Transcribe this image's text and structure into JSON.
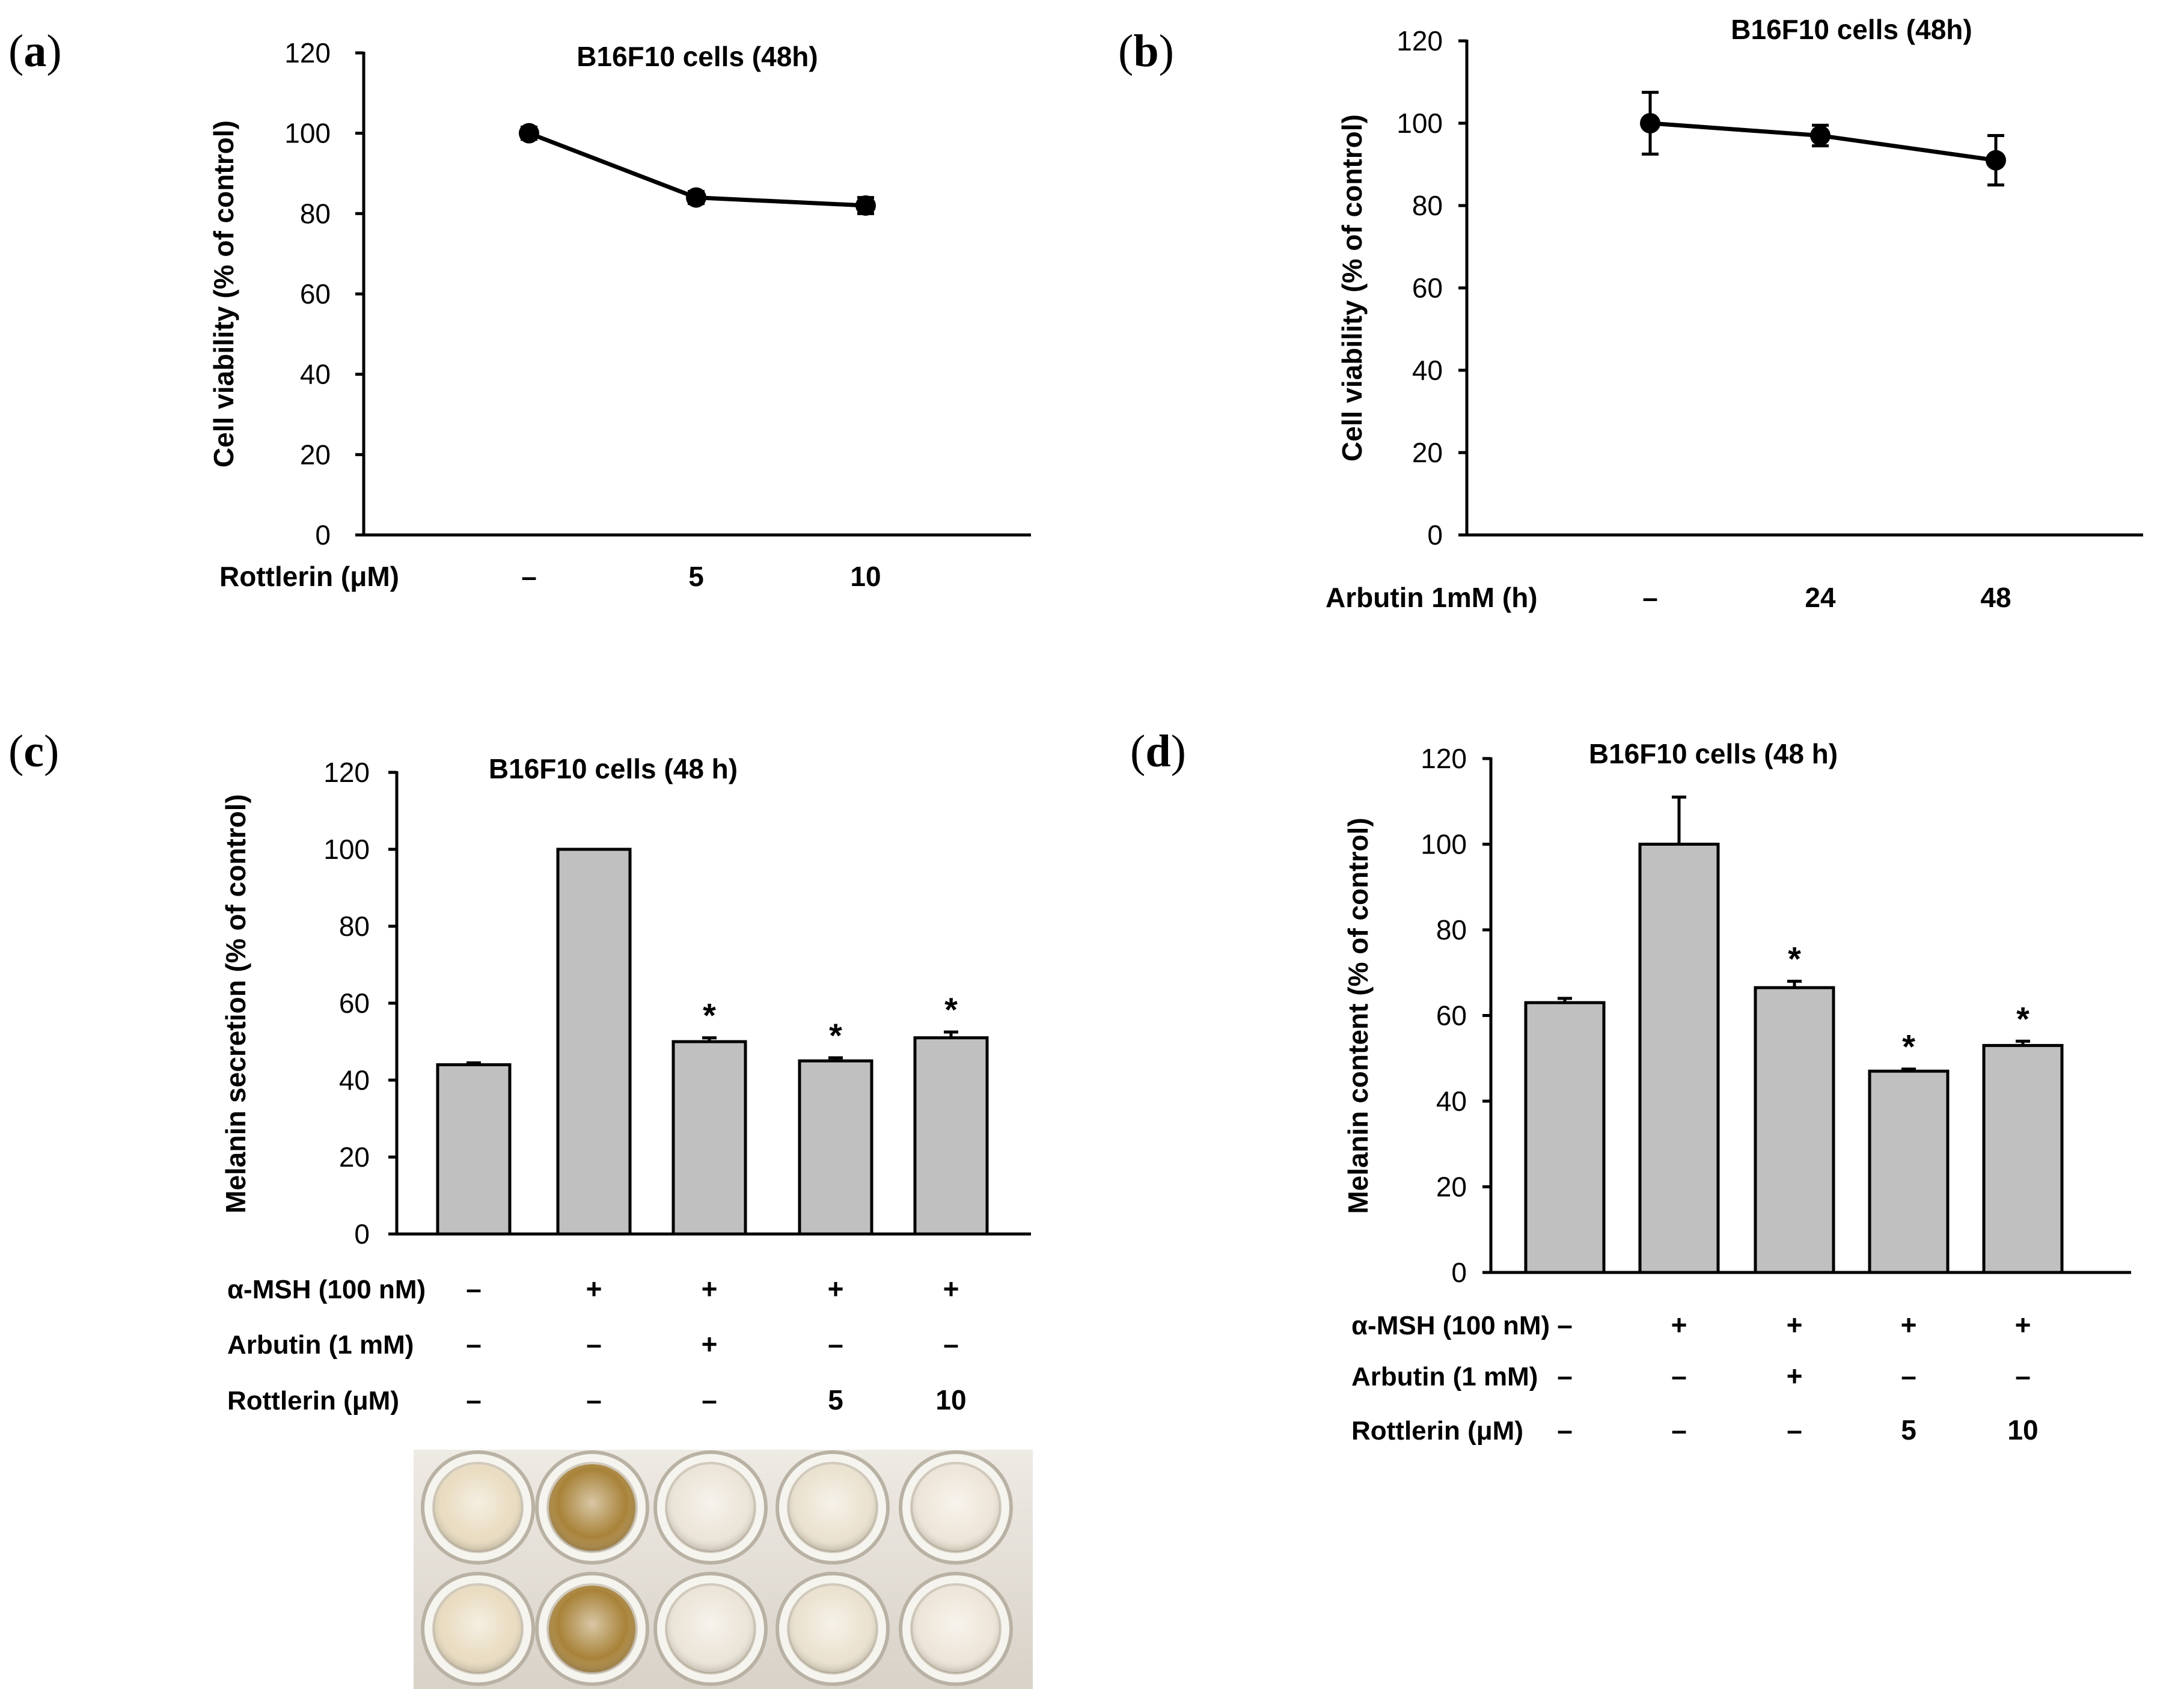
{
  "panel_labels": {
    "a": "a",
    "b": "b",
    "c": "c",
    "d": "d"
  },
  "chart_data": [
    {
      "id": "a",
      "type": "line",
      "title": "B16F10 cells (48h)",
      "ylabel": "Cell viability (% of control)",
      "xlabel": "Rottlerin (μM)",
      "categories": [
        "–",
        "5",
        "10"
      ],
      "values": [
        100,
        84,
        82
      ],
      "errors": [
        1.5,
        1.5,
        2.0
      ],
      "ylim": [
        0,
        120
      ],
      "yticks": [
        "0",
        "20",
        "40",
        "60",
        "80",
        "100",
        "120"
      ]
    },
    {
      "id": "b",
      "type": "line",
      "title": "B16F10 cells (48h)",
      "ylabel": "Cell viability (% of control)",
      "xlabel": "Arbutin 1mM (h)",
      "categories": [
        "–",
        "24",
        "48"
      ],
      "values": [
        100,
        97,
        91
      ],
      "errors": [
        7.5,
        2.5,
        6
      ],
      "ylim": [
        0,
        120
      ],
      "yticks": [
        "0",
        "20",
        "40",
        "60",
        "80",
        "100",
        "120"
      ]
    },
    {
      "id": "c",
      "type": "bar",
      "title": "B16F10 cells (48 h)",
      "ylabel": "Melanin secretion (% of control)",
      "values": [
        44,
        100,
        50,
        45,
        51
      ],
      "errors": [
        0.5,
        0,
        1,
        0.8,
        1.5
      ],
      "significant": [
        false,
        false,
        true,
        true,
        true
      ],
      "star": "*",
      "ylim": [
        0,
        120
      ],
      "yticks": [
        "0",
        "20",
        "40",
        "60",
        "80",
        "100",
        "120"
      ],
      "treatment_rows": [
        {
          "label": "α-MSH (100 nM)",
          "cells": [
            "–",
            "+",
            "+",
            "+",
            "+"
          ]
        },
        {
          "label": "Arbutin (1 mM)",
          "cells": [
            "–",
            "–",
            "+",
            "–",
            "–"
          ]
        },
        {
          "label": "Rottlerin (μM)",
          "cells": [
            "–",
            "–",
            "–",
            "5",
            "10"
          ]
        }
      ],
      "well_colors": [
        "#e9dcc0",
        "#a88238",
        "#ece5d8",
        "#ebe2d0",
        "#eee6d8"
      ]
    },
    {
      "id": "d",
      "type": "bar",
      "title": "B16F10 cells (48 h)",
      "ylabel": "Melanin content (% of control)",
      "values": [
        63,
        100,
        66.5,
        47,
        53
      ],
      "errors": [
        1,
        11,
        1.5,
        0.5,
        1
      ],
      "significant": [
        false,
        false,
        true,
        true,
        true
      ],
      "star": "*",
      "ylim": [
        0,
        120
      ],
      "yticks": [
        "0",
        "20",
        "40",
        "60",
        "80",
        "100",
        "120"
      ],
      "treatment_rows": [
        {
          "label": "α-MSH (100 nM)",
          "cells": [
            "–",
            "+",
            "+",
            "+",
            "+"
          ]
        },
        {
          "label": "Arbutin (1 mM)",
          "cells": [
            "–",
            "–",
            "+",
            "–",
            "–"
          ]
        },
        {
          "label": "Rottlerin (μM)",
          "cells": [
            "–",
            "–",
            "–",
            "5",
            "10"
          ]
        }
      ]
    }
  ]
}
